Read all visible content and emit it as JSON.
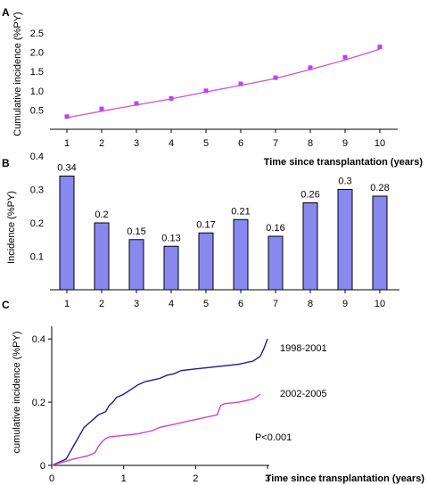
{
  "panels": {
    "a_letter": "A",
    "b_letter": "B",
    "c_letter": "C"
  },
  "chart_data": [
    {
      "panel": "A",
      "type": "line",
      "ylabel": "Cumulative incidence (%PY)",
      "xlabel": "",
      "x": [
        1,
        2,
        3,
        4,
        5,
        6,
        7,
        8,
        9,
        10
      ],
      "y_ticks": [
        "0.5",
        "1.0",
        "1.5",
        "2.0",
        "2.5"
      ],
      "y_tick_values": [
        0.5,
        1.0,
        1.5,
        2.0,
        2.5
      ],
      "ylim": [
        0,
        2.5
      ],
      "series": [
        {
          "markers": [
            0.33,
            0.53,
            0.67,
            0.8,
            1.0,
            1.18,
            1.34,
            1.6,
            1.87,
            2.14
          ],
          "trend": [
            0.3,
            0.47,
            0.63,
            0.79,
            0.97,
            1.14,
            1.32,
            1.55,
            1.8,
            2.08
          ]
        }
      ],
      "color": "#cc55cc",
      "marker_color": "#bb44ee",
      "grid": false
    },
    {
      "panel": "B",
      "type": "bar",
      "ylabel": "Incidence (%PY)",
      "xlabel": "Time since transplantation (years)",
      "categories": [
        "1",
        "2",
        "3",
        "4",
        "5",
        "6",
        "7",
        "8",
        "9",
        "10"
      ],
      "values": [
        0.34,
        0.2,
        0.15,
        0.13,
        0.17,
        0.21,
        0.16,
        0.26,
        0.3,
        0.28
      ],
      "value_labels": [
        "0.34",
        "0.2",
        "0.15",
        "0.13",
        "0.17",
        "0.21",
        "0.16",
        "0.26",
        "0.3",
        "0.28"
      ],
      "y_ticks": [
        "0.1",
        "0.2",
        "0.3",
        "0.4"
      ],
      "y_tick_values": [
        0.1,
        0.2,
        0.3,
        0.4
      ],
      "ylim": [
        0,
        0.4
      ],
      "bar_color": "#8888ee",
      "grid": false
    },
    {
      "panel": "C",
      "type": "line",
      "ylabel": "cumulative incidence (%PY)",
      "xlabel": "Time since transplantation (years)",
      "x_ticks": [
        "0",
        "1",
        "2",
        "3"
      ],
      "x_tick_values": [
        0,
        1,
        2,
        3
      ],
      "y_ticks": [
        "0",
        "0.2",
        "0.4"
      ],
      "y_tick_values": [
        0,
        0.2,
        0.4
      ],
      "xlim": [
        0,
        3
      ],
      "ylim": [
        0,
        0.44
      ],
      "annotation": "P<0.001",
      "series": [
        {
          "name": "1998-2001",
          "color": "#1a1a99",
          "x": [
            0,
            0.1,
            0.2,
            0.25,
            0.3,
            0.35,
            0.4,
            0.45,
            0.5,
            0.55,
            0.6,
            0.65,
            0.7,
            0.75,
            0.8,
            0.85,
            0.9,
            1.0,
            1.1,
            1.2,
            1.3,
            1.4,
            1.5,
            1.6,
            1.7,
            1.8,
            2.0,
            2.2,
            2.4,
            2.6,
            2.8,
            2.9,
            2.95,
            3.0
          ],
          "y": [
            0,
            0.01,
            0.02,
            0.04,
            0.06,
            0.08,
            0.1,
            0.12,
            0.13,
            0.14,
            0.15,
            0.16,
            0.165,
            0.17,
            0.19,
            0.2,
            0.215,
            0.225,
            0.24,
            0.255,
            0.265,
            0.27,
            0.275,
            0.285,
            0.29,
            0.3,
            0.305,
            0.31,
            0.315,
            0.32,
            0.33,
            0.345,
            0.37,
            0.4
          ]
        },
        {
          "name": "2002-2005",
          "color": "#cc44cc",
          "x": [
            0,
            0.3,
            0.5,
            0.6,
            0.65,
            0.7,
            0.75,
            0.8,
            1.0,
            1.2,
            1.4,
            1.5,
            1.7,
            1.9,
            2.1,
            2.2,
            2.3,
            2.35,
            2.4,
            2.6,
            2.8,
            2.9
          ],
          "y": [
            0,
            0.02,
            0.03,
            0.04,
            0.06,
            0.075,
            0.085,
            0.09,
            0.095,
            0.1,
            0.11,
            0.12,
            0.13,
            0.14,
            0.15,
            0.155,
            0.16,
            0.19,
            0.195,
            0.2,
            0.21,
            0.225
          ]
        }
      ],
      "grid": false
    }
  ]
}
